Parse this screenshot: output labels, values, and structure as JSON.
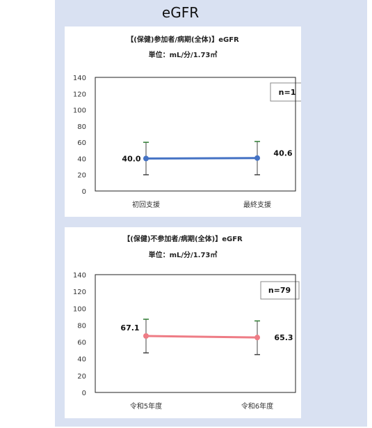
{
  "page": {
    "title": "eGFR"
  },
  "chart_data": [
    {
      "type": "line",
      "title": "【(保健)参加者/病期(全体)】eGFR",
      "subtitle": "単位：mL/分/1.73㎡",
      "categories": [
        "初回支援",
        "最終支援"
      ],
      "series": [
        {
          "values": [
            40.0,
            40.6
          ],
          "error_low": [
            20,
            20
          ],
          "error_high": [
            60,
            61
          ],
          "color": "#4472c4"
        }
      ],
      "data_labels": [
        "40.0",
        "40.6"
      ],
      "ylim": [
        0,
        140
      ],
      "yticks": [
        "0",
        "20",
        "40",
        "60",
        "80",
        "100",
        "120",
        "140"
      ],
      "annotation": "n=1",
      "grid": false
    },
    {
      "type": "line",
      "title": "【(保健)不参加者/病期(全体)】eGFR",
      "subtitle": "単位：mL/分/1.73㎡",
      "categories": [
        "令和5年度",
        "令和6年度"
      ],
      "series": [
        {
          "values": [
            67.1,
            65.3
          ],
          "error_low": [
            47,
            45
          ],
          "error_high": [
            87,
            85
          ],
          "color": "#ee7c85"
        }
      ],
      "data_labels": [
        "67.1",
        "65.3"
      ],
      "ylim": [
        0,
        140
      ],
      "yticks": [
        "0",
        "20",
        "40",
        "60",
        "80",
        "100",
        "120",
        "140"
      ],
      "annotation": "n=79",
      "grid": false
    }
  ]
}
